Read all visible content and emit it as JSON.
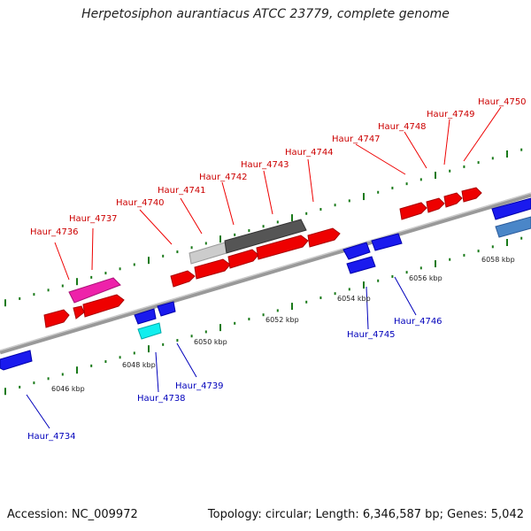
{
  "title": "Herpetosiphon aurantiacus ATCC 23779, complete genome",
  "footer": {
    "accession": "Accession: NC_009972",
    "topology": "Topology: circular; Length: 6,346,587 bp; Genes: 5,042"
  },
  "colors": {
    "forward_gene": "#ee0000",
    "reverse_gene": "#1a1aee",
    "backbone": "#888888",
    "tick": "#1a7a1a",
    "highlight_magenta": "#ee22aa",
    "highlight_cyan": "#11eeee",
    "highlight_gray_dark": "#555555",
    "highlight_gray_light": "#cccccc",
    "highlight_steelblue": "#4a86c8"
  },
  "scale_labels": [
    "6046 kbp",
    "6048 kbp",
    "6050 kbp",
    "6052 kbp",
    "6054 kbp",
    "6056 kbp",
    "6058 kbp"
  ],
  "forward_genes": [
    "Haur_4736",
    "Haur_4737",
    "Haur_4740",
    "Haur_4741",
    "Haur_4742",
    "Haur_4743",
    "Haur_4744",
    "Haur_4747",
    "Haur_4748",
    "Haur_4749",
    "Haur_4750"
  ],
  "reverse_genes": [
    "Haur_4734",
    "Haur_4738",
    "Haur_4739",
    "Haur_4745",
    "Haur_4746"
  ]
}
